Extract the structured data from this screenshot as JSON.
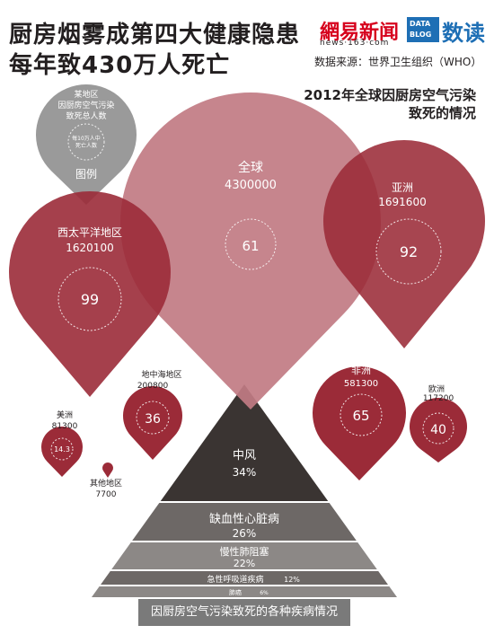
{
  "header": {
    "title_line1": "厨房烟雾成第四大健康隐患",
    "title_line2": "每年致430万人死亡"
  },
  "logos": {
    "netease_name": "網易新闻",
    "netease_url": "news·163·com",
    "datablog_line1": "DATA",
    "datablog_line2": "BLOG",
    "datablog_cn": "数读"
  },
  "source": "数据来源：世界卫生组织（WHO）",
  "subtitle_line1": "2012年全球因厨房空气污染",
  "subtitle_line2": "致死的情况",
  "legend": {
    "line1": "某地区",
    "line2": "因厨房空气污染",
    "line3": "致死总人数",
    "inner_line1": "每10万人中",
    "inner_line2": "死亡人数",
    "label": "图例"
  },
  "regions": [
    {
      "id": "global",
      "name": "全球",
      "total": "4300000",
      "rate": "61"
    },
    {
      "id": "asia",
      "name": "亚洲",
      "total": "1691600",
      "rate": "92"
    },
    {
      "id": "west-pacific",
      "name": "西太平洋地区",
      "total": "1620100",
      "rate": "99"
    },
    {
      "id": "africa",
      "name": "非洲",
      "total": "581300",
      "rate": "65"
    },
    {
      "id": "mediterranean",
      "name": "地中海地区",
      "total": "200800",
      "rate": "36"
    },
    {
      "id": "europe",
      "name": "欧洲",
      "total": "117200",
      "rate": "40"
    },
    {
      "id": "americas",
      "name": "美洲",
      "total": "81300",
      "rate": "14.3"
    },
    {
      "id": "other",
      "name": "其他地区",
      "total": "7700",
      "rate": ""
    }
  ],
  "diseases": [
    {
      "name": "中风",
      "pct": "34%"
    },
    {
      "name": "缺血性心脏病",
      "pct": "26%"
    },
    {
      "name": "慢性肺阻塞",
      "pct": "22%"
    },
    {
      "name": "急性呼吸道疾病",
      "pct": "12%"
    },
    {
      "name": "肺癌",
      "pct": "6%"
    }
  ],
  "footer_caption": "因厨房空气污染致死的各种疾病情况",
  "colors": {
    "dark_red": "#9b2b38",
    "pink": "#c17b83",
    "gray": "#9a9a9a",
    "pyramid_dark": "#3a3432",
    "pyramid_mid": "#6d6866",
    "pyramid_light": "#8c8886"
  }
}
